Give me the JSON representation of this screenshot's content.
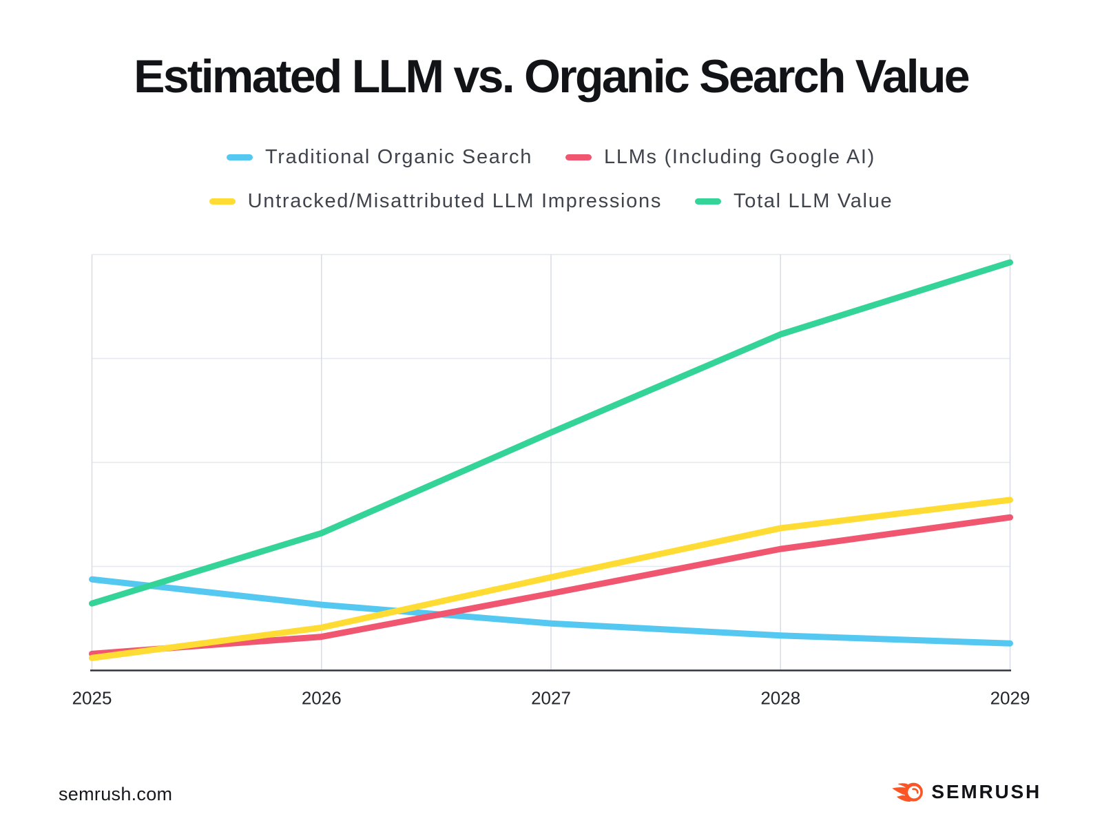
{
  "title": "Estimated LLM vs. Organic Search Value",
  "chart_data": {
    "type": "line",
    "title": "Estimated LLM vs. Organic Search Value",
    "categories": [
      "2025",
      "2026",
      "2027",
      "2028",
      "2029"
    ],
    "series": [
      {
        "name": "Traditional Organic Search",
        "color": "#55C8F1",
        "values": [
          21.9,
          15.8,
          11.3,
          8.4,
          6.5
        ]
      },
      {
        "name": "LLMs (Including Google AI)",
        "color": "#F0566F",
        "values": [
          4.0,
          8.1,
          18.5,
          29.2,
          36.8
        ]
      },
      {
        "name": "Untracked/Misattributed LLM Impressions",
        "color": "#FFDC33",
        "values": [
          3.0,
          10.3,
          22.4,
          34.2,
          41.0
        ]
      },
      {
        "name": "Total LLM Value",
        "color": "#34D398",
        "values": [
          16.1,
          33.0,
          57.2,
          80.8,
          98.1
        ]
      }
    ],
    "xlabel": "",
    "ylabel": "",
    "ylim": [
      0,
      100
    ],
    "y_gridline_step": 25,
    "y_tick_labels_visible": false,
    "grid": true,
    "legend_position": "top"
  },
  "legend_rows": [
    [
      0,
      1
    ],
    [
      2,
      3
    ]
  ],
  "footer": {
    "source": "semrush.com",
    "brand": "SEMRUSH"
  },
  "style_colors": {
    "background": "#FFFFFF",
    "grid_horizontal": "#E6E7EF",
    "grid_vertical": "#D9DBE7",
    "axis": "#30333A",
    "tick_text": "#23262D",
    "title_text": "#121317",
    "legend_text": "#3F434C",
    "logo_orange": "#FB5525",
    "logo_text": "#121317"
  }
}
